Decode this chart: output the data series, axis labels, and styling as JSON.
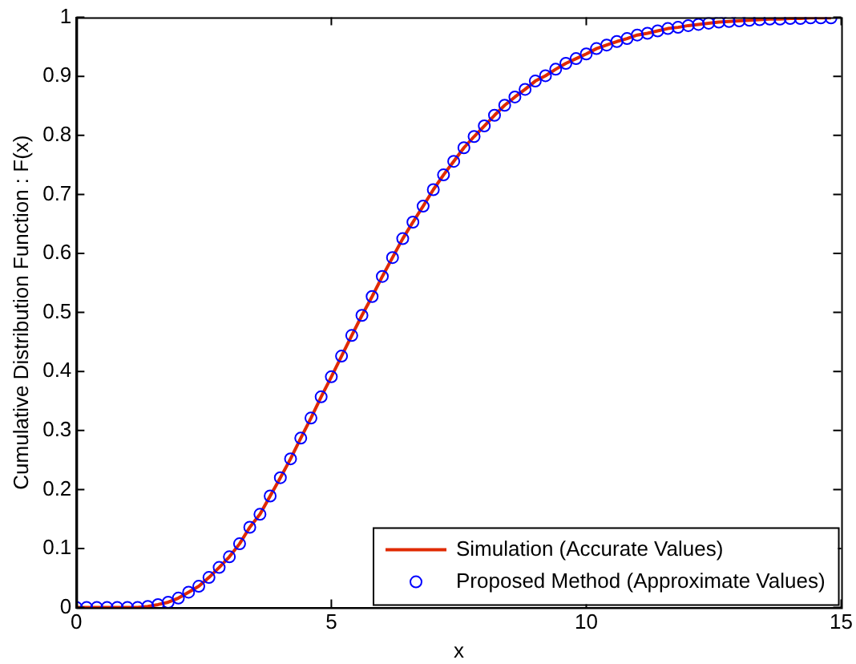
{
  "chart_data": {
    "type": "scatter",
    "xlabel": "x",
    "ylabel": "Cumulative Distribution Function : F(x)",
    "x": [
      0,
      0.2,
      0.4,
      0.6,
      0.8,
      1,
      1.2,
      1.4,
      1.6,
      1.8,
      2,
      2.2,
      2.4,
      2.6,
      2.8,
      3,
      3.2,
      3.4,
      3.6,
      3.8,
      4,
      4.2,
      4.4,
      4.6,
      4.8,
      5,
      5.2,
      5.4,
      5.6,
      5.8,
      6,
      6.2,
      6.4,
      6.6,
      6.8,
      7,
      7.2,
      7.4,
      7.6,
      7.8,
      8,
      8.2,
      8.4,
      8.6,
      8.8,
      9,
      9.2,
      9.4,
      9.6,
      9.8,
      10,
      10.2,
      10.4,
      10.6,
      10.8,
      11,
      11.2,
      11.4,
      11.6,
      11.8,
      12,
      12.2,
      12.4,
      12.6,
      12.8,
      13,
      13.2,
      13.4,
      13.6,
      13.8,
      14,
      14.2,
      14.4,
      14.6,
      14.8
    ],
    "series": [
      {
        "name": "Simulation (Accurate Values)",
        "type": "line",
        "color": "#e02a00",
        "marker": "none",
        "line_style": "solid",
        "values": [
          0,
          0,
          0,
          0,
          0,
          0,
          0,
          0.002,
          0.005,
          0.009,
          0.016,
          0.026,
          0.036,
          0.051,
          0.068,
          0.086,
          0.108,
          0.136,
          0.158,
          0.189,
          0.22,
          0.252,
          0.287,
          0.321,
          0.357,
          0.391,
          0.426,
          0.461,
          0.495,
          0.527,
          0.561,
          0.593,
          0.625,
          0.653,
          0.68,
          0.708,
          0.733,
          0.756,
          0.779,
          0.798,
          0.816,
          0.834,
          0.851,
          0.865,
          0.878,
          0.892,
          0.901,
          0.912,
          0.922,
          0.93,
          0.938,
          0.947,
          0.953,
          0.959,
          0.964,
          0.97,
          0.973,
          0.977,
          0.981,
          0.983,
          0.986,
          0.988,
          0.99,
          0.992,
          0.993,
          0.994,
          0.995,
          0.996,
          0.997,
          0.997,
          0.998,
          0.998,
          0.999,
          0.999,
          0.999
        ]
      },
      {
        "name": "Proposed Method (Approximate Values)",
        "type": "scatter",
        "color": "#0000ff",
        "marker": "circle",
        "values": [
          0,
          0,
          0,
          0,
          0,
          0,
          0,
          0.002,
          0.005,
          0.009,
          0.016,
          0.026,
          0.036,
          0.051,
          0.068,
          0.086,
          0.108,
          0.136,
          0.158,
          0.189,
          0.22,
          0.252,
          0.287,
          0.321,
          0.357,
          0.391,
          0.426,
          0.461,
          0.495,
          0.527,
          0.561,
          0.593,
          0.625,
          0.653,
          0.68,
          0.708,
          0.733,
          0.756,
          0.779,
          0.798,
          0.816,
          0.834,
          0.851,
          0.865,
          0.878,
          0.892,
          0.901,
          0.912,
          0.922,
          0.93,
          0.938,
          0.947,
          0.953,
          0.959,
          0.964,
          0.97,
          0.973,
          0.977,
          0.981,
          0.983,
          0.986,
          0.988,
          0.99,
          0.992,
          0.993,
          0.994,
          0.995,
          0.996,
          0.997,
          0.997,
          0.998,
          0.998,
          0.999,
          0.999,
          0.999
        ]
      }
    ],
    "xlim": [
      0,
      15
    ],
    "xticks": [
      0,
      5,
      10,
      15
    ],
    "ylim": [
      0,
      1
    ],
    "yticks": [
      0,
      0.1,
      0.2,
      0.3,
      0.4,
      0.5,
      0.6,
      0.7,
      0.8,
      0.9,
      1
    ],
    "grid": false,
    "legend": "bottom right"
  }
}
